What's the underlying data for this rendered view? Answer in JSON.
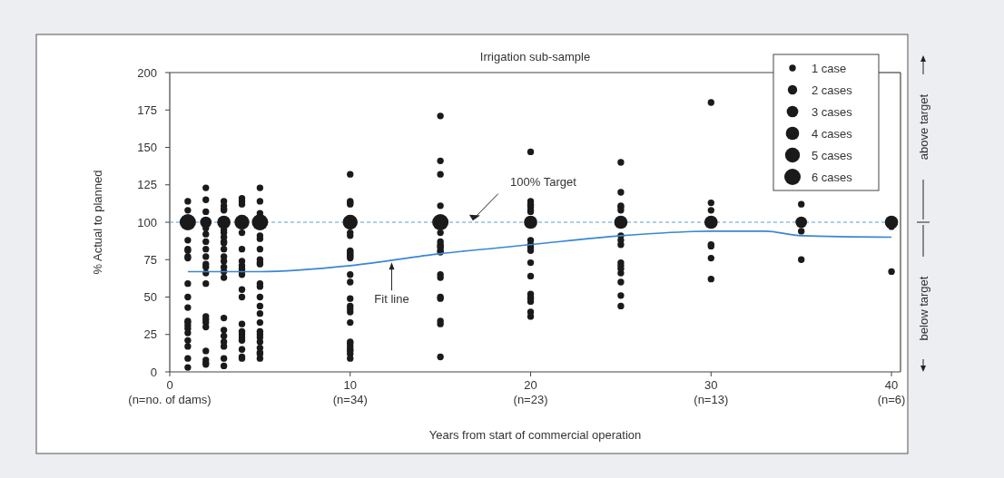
{
  "chart_data": {
    "type": "bubble",
    "title": "Irrigation sub-sample",
    "xlabel": "Years from start of commercial operation",
    "ylabel": "% Actual to planned",
    "xlim": [
      0,
      40.5
    ],
    "xticks": [
      0,
      10,
      20,
      30,
      40
    ],
    "ylim": [
      0,
      200
    ],
    "yticks": [
      0,
      25,
      50,
      75,
      100,
      125,
      150,
      175,
      200
    ],
    "size_legend": [
      {
        "value": 1,
        "label": "1 case"
      },
      {
        "value": 2,
        "label": "2 cases"
      },
      {
        "value": 3,
        "label": "3 cases"
      },
      {
        "value": 4,
        "label": "4 cases"
      },
      {
        "value": 5,
        "label": "5 cases"
      },
      {
        "value": 6,
        "label": "6 cases"
      }
    ],
    "legend": "top right",
    "grid": false,
    "series": [
      {
        "color": "#1a1a1a",
        "x": [
          1,
          1,
          1,
          1,
          1,
          1,
          1,
          1,
          1,
          1,
          1,
          1,
          1,
          1,
          1,
          1,
          1,
          1,
          1,
          1,
          2,
          2,
          2,
          2,
          2,
          2,
          2,
          2,
          2,
          2,
          2,
          2,
          2,
          2,
          2,
          2,
          2,
          2,
          2,
          2,
          2,
          3,
          3,
          3,
          3,
          3,
          3,
          3,
          3,
          3,
          3,
          3,
          3,
          3,
          3,
          3,
          3,
          3,
          3,
          3,
          3,
          3,
          3,
          3,
          4,
          4,
          4,
          4,
          4,
          4,
          4,
          4,
          4,
          4,
          4,
          4,
          4,
          4,
          4,
          4,
          4,
          4,
          4,
          4,
          4,
          5,
          5,
          5,
          5,
          5,
          5,
          5,
          5,
          5,
          5,
          5,
          5,
          5,
          5,
          5,
          5,
          5,
          5,
          5,
          5,
          5,
          5,
          5,
          5,
          10,
          10,
          10,
          10,
          10,
          10,
          10,
          10,
          10,
          10,
          10,
          10,
          10,
          10,
          10,
          10,
          10,
          10,
          10,
          10,
          10,
          10,
          10,
          10,
          10,
          10,
          10,
          15,
          15,
          15,
          15,
          15,
          15,
          15,
          15,
          15,
          15,
          15,
          15,
          15,
          15,
          15,
          15,
          15,
          15,
          15,
          20,
          20,
          20,
          20,
          20,
          20,
          20,
          20,
          20,
          20,
          20,
          20,
          20,
          20,
          20,
          20,
          20,
          20,
          20,
          20,
          25,
          25,
          25,
          25,
          25,
          25,
          25,
          25,
          25,
          25,
          25,
          25,
          25,
          25,
          25,
          25,
          30,
          30,
          30,
          30,
          30,
          30,
          30,
          30,
          35,
          35,
          35,
          35,
          40,
          40,
          40
        ],
        "values": [
          100,
          114,
          108,
          88,
          82,
          81,
          77,
          76,
          59,
          50,
          43,
          34,
          33,
          31,
          29,
          26,
          21,
          17,
          9,
          3,
          100,
          123,
          115,
          107,
          96,
          92,
          87,
          82,
          77,
          72,
          70,
          66,
          59,
          37,
          35,
          33,
          30,
          14,
          8,
          6,
          5,
          100,
          114,
          111,
          109,
          108,
          95,
          93,
          90,
          87,
          86,
          82,
          77,
          74,
          70,
          67,
          63,
          36,
          28,
          24,
          20,
          17,
          9,
          4,
          100,
          116,
          114,
          112,
          93,
          82,
          74,
          71,
          69,
          67,
          65,
          55,
          50,
          32,
          27,
          25,
          23,
          21,
          15,
          10,
          9,
          100,
          123,
          114,
          106,
          91,
          89,
          82,
          75,
          73,
          72,
          59,
          57,
          50,
          44,
          39,
          33,
          27,
          25,
          23,
          20,
          16,
          13,
          12,
          9,
          100,
          132,
          114,
          113,
          112,
          93,
          91,
          81,
          80,
          79,
          78,
          77,
          76,
          65,
          60,
          49,
          44,
          42,
          40,
          33,
          20,
          19,
          17,
          15,
          14,
          12,
          9,
          100,
          171,
          141,
          132,
          111,
          93,
          87,
          85,
          84,
          83,
          81,
          80,
          65,
          63,
          50,
          49,
          34,
          32,
          10,
          100,
          147,
          114,
          112,
          111,
          110,
          108,
          107,
          88,
          85,
          83,
          81,
          73,
          64,
          52,
          50,
          49,
          47,
          40,
          37,
          100,
          140,
          120,
          111,
          110,
          108,
          91,
          88,
          85,
          73,
          71,
          69,
          66,
          60,
          51,
          44,
          100,
          180,
          113,
          108,
          85,
          84,
          76,
          62,
          100,
          112,
          94,
          75,
          100,
          97,
          67
        ],
        "sizes": [
          6,
          1,
          1,
          1,
          1,
          1,
          1,
          1,
          1,
          1,
          1,
          1,
          1,
          1,
          1,
          1,
          1,
          1,
          1,
          1,
          3,
          1,
          1,
          1,
          1,
          1,
          1,
          1,
          1,
          1,
          1,
          1,
          1,
          1,
          1,
          1,
          1,
          1,
          1,
          1,
          1,
          4,
          1,
          1,
          1,
          1,
          1,
          1,
          1,
          1,
          1,
          1,
          1,
          1,
          1,
          1,
          1,
          1,
          1,
          1,
          1,
          1,
          1,
          1,
          5,
          1,
          1,
          1,
          1,
          1,
          1,
          1,
          1,
          1,
          1,
          1,
          1,
          1,
          1,
          1,
          1,
          1,
          1,
          1,
          1,
          6,
          1,
          1,
          1,
          1,
          1,
          1,
          1,
          1,
          1,
          1,
          1,
          1,
          1,
          1,
          1,
          1,
          1,
          1,
          1,
          1,
          1,
          1,
          1,
          5,
          1,
          1,
          1,
          1,
          1,
          1,
          1,
          1,
          1,
          1,
          1,
          1,
          1,
          1,
          1,
          1,
          1,
          1,
          1,
          1,
          1,
          1,
          1,
          1,
          1,
          1,
          6,
          1,
          1,
          1,
          1,
          1,
          1,
          1,
          1,
          1,
          1,
          1,
          1,
          1,
          1,
          1,
          1,
          1,
          1,
          4,
          1,
          1,
          1,
          1,
          1,
          1,
          1,
          1,
          1,
          1,
          1,
          1,
          1,
          1,
          1,
          1,
          1,
          1,
          1,
          4,
          1,
          1,
          1,
          1,
          1,
          1,
          1,
          1,
          1,
          1,
          1,
          1,
          1,
          1,
          1,
          4,
          1,
          1,
          1,
          1,
          1,
          1,
          1,
          3,
          1,
          1,
          1,
          4,
          1,
          1
        ]
      },
      {
        "type": "line",
        "color": "#3a86d4",
        "x": [
          1,
          5,
          10,
          15,
          20,
          25,
          30,
          33,
          35,
          40
        ],
        "values": [
          67,
          67,
          71,
          79,
          85,
          91,
          94,
          94,
          91,
          90
        ]
      }
    ],
    "ref_lines": [
      {
        "axis": "y",
        "value": 100,
        "label": "100% Target",
        "color": "#5b9bd5",
        "line_style": "dashed"
      }
    ],
    "annotations": [
      "above target",
      "below target",
      "(n=no. of dams)",
      "(n=34)",
      "(n=23)",
      "(n=13)",
      "(n=6)",
      {
        "text": "Fit line",
        "x": 12.3,
        "y": 75
      }
    ]
  }
}
